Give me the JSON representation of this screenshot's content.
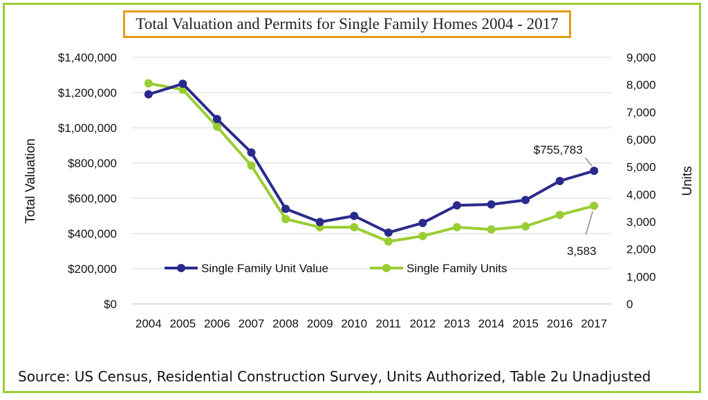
{
  "colors": {
    "frame_border": "#9ACD32",
    "title_border": "#E59A14",
    "series_value": "#2A2A8C",
    "series_units": "#9ACD32",
    "grid": "#D9D9D9"
  },
  "source": "Source: US Census, Residential Construction Survey, Units Authorized, Table 2u Unadjusted",
  "chart_data": {
    "type": "line",
    "title": "Total Valuation and Permits for Single Family Homes 2004 - 2017",
    "categories": [
      "2004",
      "2005",
      "2006",
      "2007",
      "2008",
      "2009",
      "2010",
      "2011",
      "2012",
      "2013",
      "2014",
      "2015",
      "2016",
      "2017"
    ],
    "y_left": {
      "label": "Total Valuation",
      "lim": [
        0,
        1400000
      ],
      "ticks": [
        0,
        200000,
        400000,
        600000,
        800000,
        1000000,
        1200000,
        1400000
      ],
      "tick_labels": [
        "$0",
        "$200,000",
        "$400,000",
        "$600,000",
        "$800,000",
        "$1,000,000",
        "$1,200,000",
        "$1,400,000"
      ]
    },
    "y_right": {
      "label": "Units",
      "lim": [
        0,
        9000
      ],
      "ticks": [
        0,
        1000,
        2000,
        3000,
        4000,
        5000,
        6000,
        7000,
        8000,
        9000
      ],
      "tick_labels": [
        "0",
        "1,000",
        "2,000",
        "3,000",
        "4,000",
        "5,000",
        "6,000",
        "7,000",
        "8,000",
        "9,000"
      ]
    },
    "grid": "horizontal",
    "legend_position": "inside-bottom",
    "series": [
      {
        "name": "Single Family Unit Value",
        "axis": "left",
        "values": [
          1190000,
          1250000,
          1050000,
          860000,
          540000,
          465000,
          500000,
          405000,
          460000,
          560000,
          565000,
          590000,
          698000,
          755783
        ]
      },
      {
        "name": "Single Family Units",
        "axis": "right",
        "values": [
          8050,
          7820,
          6470,
          5050,
          3100,
          2800,
          2800,
          2280,
          2480,
          2800,
          2720,
          2830,
          3250,
          3583
        ]
      }
    ],
    "annotations": [
      {
        "series": 0,
        "index": 13,
        "text": "$755,783"
      },
      {
        "series": 1,
        "index": 13,
        "text": "3,583"
      }
    ]
  }
}
